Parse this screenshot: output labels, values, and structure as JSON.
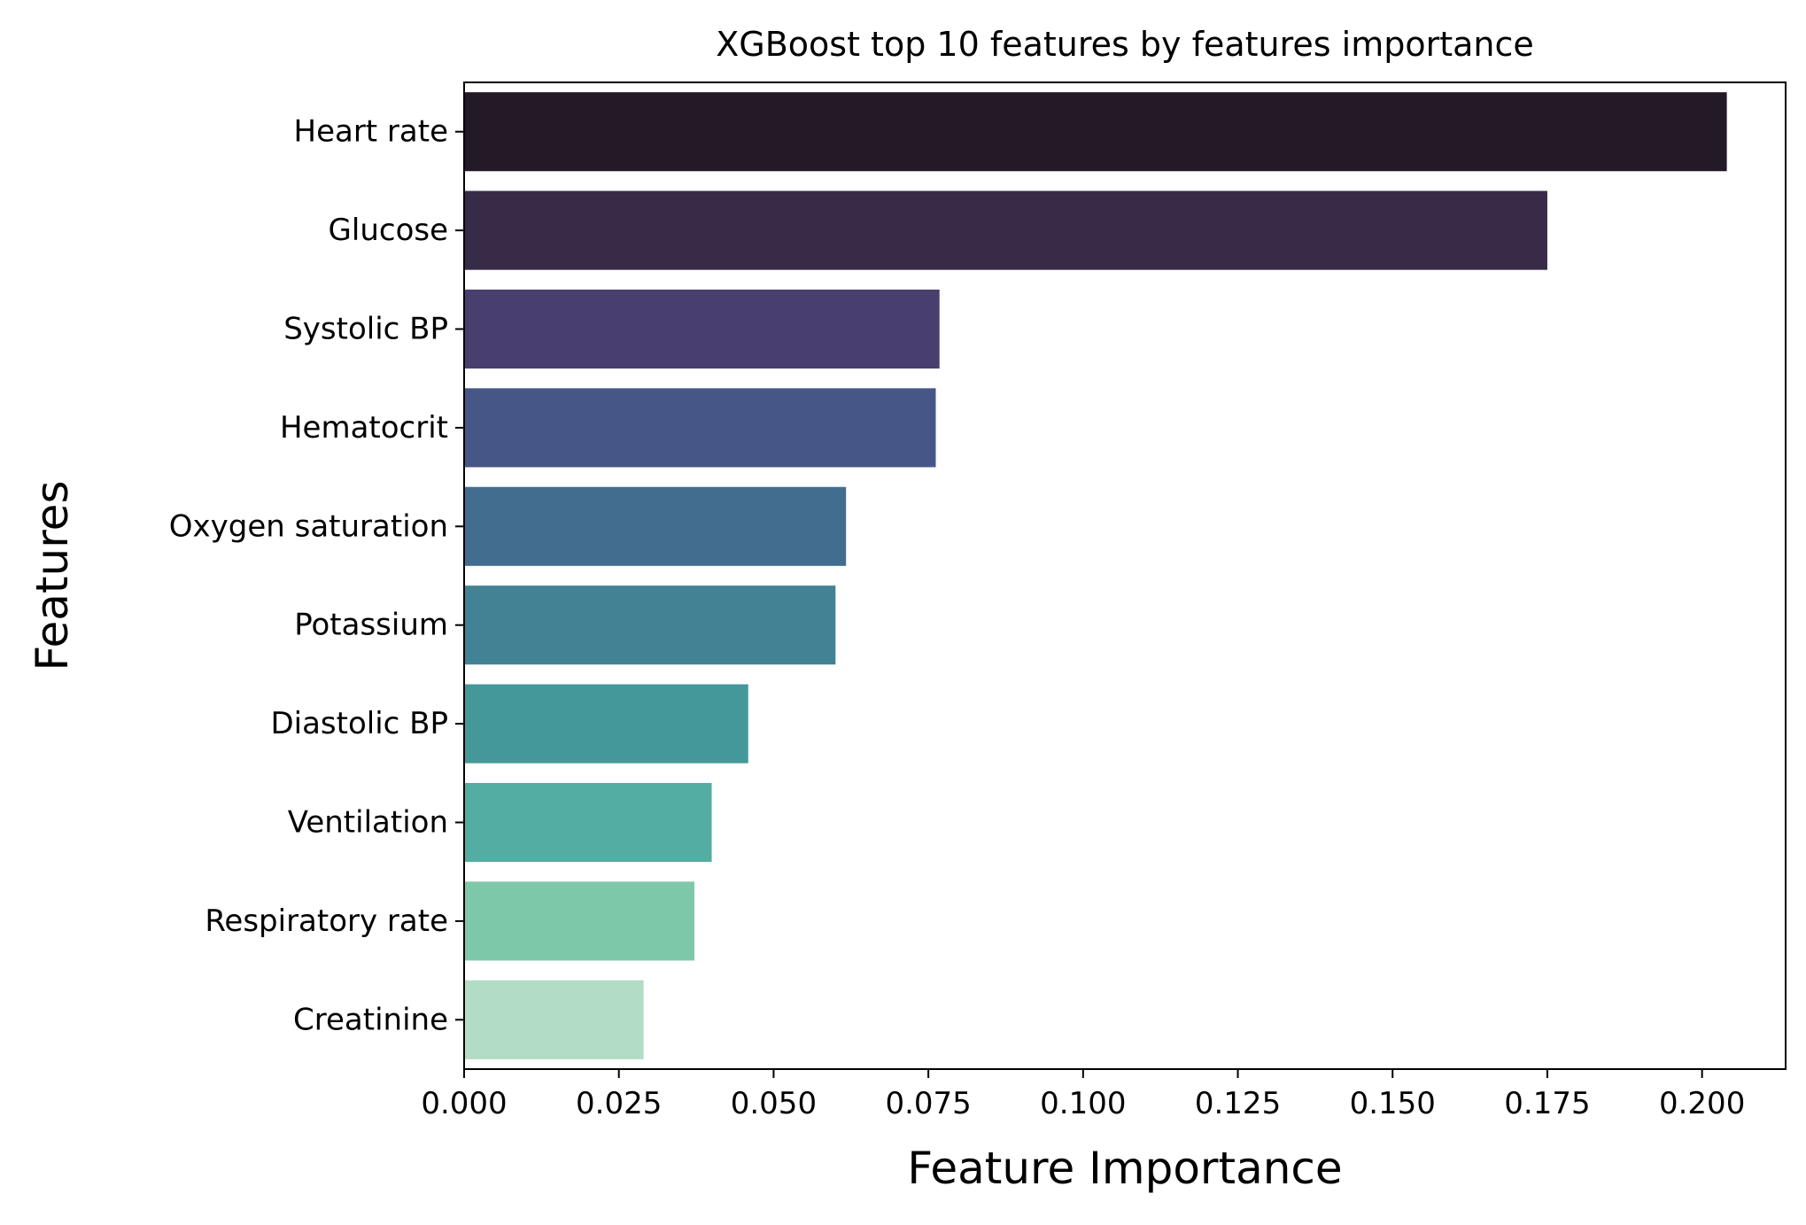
{
  "chart_data": {
    "type": "bar",
    "orientation": "horizontal",
    "title": "XGBoost top 10 features by features importance",
    "xlabel": "Feature Importance",
    "ylabel": "Features",
    "categories": [
      "Heart rate",
      "Glucose",
      "Systolic BP",
      "Hematocrit",
      "Oxygen saturation",
      "Potassium",
      "Diastolic BP",
      "Ventilation",
      "Respiratory rate",
      "Creatinine"
    ],
    "values": [
      0.204,
      0.175,
      0.0768,
      0.0762,
      0.0617,
      0.06,
      0.0459,
      0.04,
      0.0372,
      0.029
    ],
    "colors": [
      "#241927",
      "#372b48",
      "#483f6e",
      "#465787",
      "#436d8f",
      "#428294",
      "#44989a",
      "#53ada2",
      "#7ec8aa",
      "#b2dcc4"
    ],
    "xlim": [
      0,
      0.2135
    ],
    "xticks": [
      0.0,
      0.025,
      0.05,
      0.075,
      0.1,
      0.125,
      0.15,
      0.175,
      0.2
    ],
    "xtick_labels": [
      "0.000",
      "0.025",
      "0.050",
      "0.075",
      "0.100",
      "0.125",
      "0.150",
      "0.175",
      "0.200"
    ],
    "grid": false,
    "legend": "none"
  }
}
